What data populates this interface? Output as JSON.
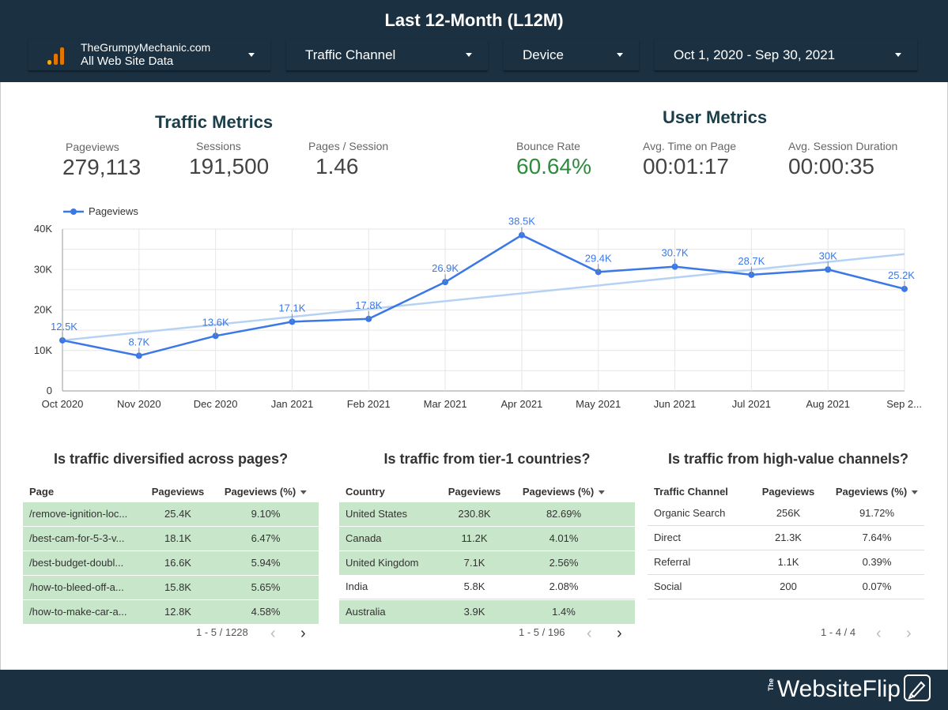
{
  "header": {
    "title": "Last 12-Month (L12M)",
    "filters": {
      "site_name": "TheGrumpyMechanic.com",
      "site_view": "All Web Site Data",
      "channel": "Traffic Channel",
      "device": "Device",
      "date_range": "Oct 1, 2020 - Sep 30, 2021"
    }
  },
  "traffic_metrics": {
    "title": "Traffic Metrics",
    "items": [
      {
        "label": "Pageviews",
        "value": "279,113"
      },
      {
        "label": "Sessions",
        "value": "191,500"
      },
      {
        "label": "Pages / Session",
        "value": "1.46"
      }
    ]
  },
  "user_metrics": {
    "title": "User Metrics",
    "items": [
      {
        "label": "Bounce Rate",
        "value": "60.64%"
      },
      {
        "label": "Avg. Time on Page",
        "value": "00:01:17"
      },
      {
        "label": "Avg. Session Duration",
        "value": "00:00:35"
      }
    ]
  },
  "chart_data": {
    "type": "line",
    "categories": [
      "Oct 2020",
      "Nov 2020",
      "Dec 2020",
      "Jan 2021",
      "Feb 2021",
      "Mar 2021",
      "Apr 2021",
      "May 2021",
      "Jun 2021",
      "Jul 2021",
      "Aug 2021",
      "Sep 2..."
    ],
    "series": [
      {
        "name": "Pageviews",
        "values": [
          12500,
          8700,
          13600,
          17100,
          17800,
          26900,
          38500,
          29400,
          30700,
          28700,
          30000,
          25200
        ],
        "data_labels": [
          "12.5K",
          "8.7K",
          "13.6K",
          "17.1K",
          "17.8K",
          "26.9K",
          "38.5K",
          "29.4K",
          "30.7K",
          "28.7K",
          "30K",
          "25.2K"
        ],
        "color": "#3b78e7"
      }
    ],
    "trendline": {
      "start": 12500,
      "end": 33800,
      "color": "#b5d2f5"
    },
    "y_ticks": [
      "0",
      "10K",
      "20K",
      "30K",
      "40K"
    ],
    "ylim": [
      0,
      40000
    ],
    "grid": true,
    "legend": "top-left"
  },
  "tables": [
    {
      "title": "Is traffic diversified across pages?",
      "headers": [
        "Page",
        "Pageviews",
        "Pageviews (%)"
      ],
      "rows": [
        [
          "/remove-ignition-loc...",
          "25.4K",
          "9.10%"
        ],
        [
          "/best-cam-for-5-3-v...",
          "18.1K",
          "6.47%"
        ],
        [
          "/best-budget-doubl...",
          "16.6K",
          "5.94%"
        ],
        [
          "/how-to-bleed-off-a...",
          "15.8K",
          "5.65%"
        ],
        [
          "/how-to-make-car-a...",
          "12.8K",
          "4.58%"
        ]
      ],
      "highlighted": [
        true,
        true,
        true,
        true,
        true
      ],
      "pager": "1 - 5 / 1228"
    },
    {
      "title": "Is traffic from tier-1 countries?",
      "headers": [
        "Country",
        "Pageviews",
        "Pageviews (%)"
      ],
      "rows": [
        [
          "United States",
          "230.8K",
          "82.69%"
        ],
        [
          "Canada",
          "11.2K",
          "4.01%"
        ],
        [
          "United Kingdom",
          "7.1K",
          "2.56%"
        ],
        [
          "India",
          "5.8K",
          "2.08%"
        ],
        [
          "Australia",
          "3.9K",
          "1.4%"
        ]
      ],
      "highlighted": [
        true,
        true,
        true,
        false,
        true
      ],
      "pager": "1 - 5 / 196"
    },
    {
      "title": "Is traffic from high-value channels?",
      "headers": [
        "Traffic Channel",
        "Pageviews",
        "Pageviews (%)"
      ],
      "rows": [
        [
          "Organic Search",
          "256K",
          "91.72%"
        ],
        [
          "Direct",
          "21.3K",
          "7.64%"
        ],
        [
          "Referral",
          "1.1K",
          "0.39%"
        ],
        [
          "Social",
          "200",
          "0.07%"
        ]
      ],
      "highlighted": [
        false,
        false,
        false,
        false
      ],
      "pager": "1 - 4 / 4"
    }
  ],
  "footer": {
    "brand_small": "The",
    "brand": "WebsiteFlip",
    "colors": {
      "header_bg": "#1b3142",
      "highlight": "#c8e6c9",
      "accent_green": "#2e8b3e"
    }
  }
}
